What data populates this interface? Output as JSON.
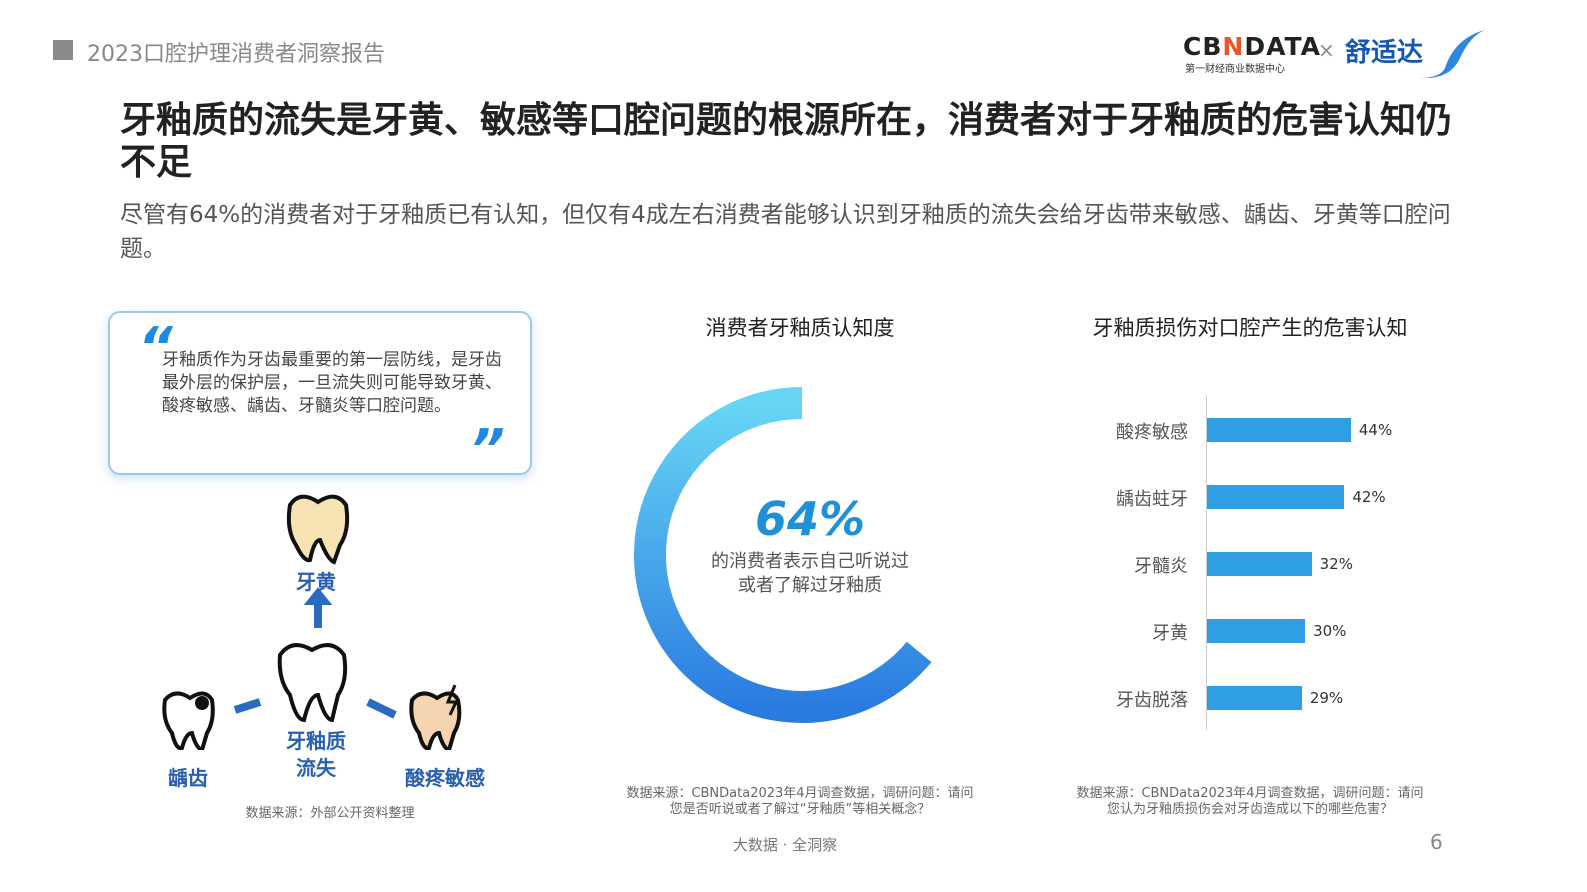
{
  "header": {
    "report_title": "2023口腔护理消费者洞察报告",
    "logo_cbn": "CBNDATA",
    "logo_cbn_sub": "第一财经商业数据中心",
    "times": "×",
    "logo_partner": "舒适达"
  },
  "title": "牙釉质的流失是牙黄、敏感等口腔问题的根源所在，消费者对于牙釉质的危害认知仍不足",
  "subtitle": "尽管有64%的消费者对于牙釉质已有认知，但仅有4成左右消费者能够认识到牙釉质的流失会给牙齿带来敏感、龋齿、牙黄等口腔问题。",
  "left": {
    "quote": "牙釉质作为牙齿最重要的第一层防线，是牙齿最外层的保护层，一旦流失则可能导致牙黄、酸疼敏感、龋齿、牙髓炎等口腔问题。",
    "quote_open": "“",
    "quote_close": "”",
    "center_label": "牙釉质流失",
    "top_label": "牙黄",
    "left_label": "龋齿",
    "right_label": "酸疼敏感",
    "source": "数据来源：外部公开资料整理"
  },
  "chart_data": [
    {
      "type": "pie",
      "title": "消费者牙釉质认知度",
      "values": [
        64
      ],
      "center_value": "64%",
      "center_text_1": "的消费者表示自己听说过",
      "center_text_2": "或者了解过牙釉质",
      "colors": [
        "#67d6f5",
        "#2a7be0"
      ],
      "source_1": "数据来源：CBNData2023年4月调查数据，调研问题：请问",
      "source_2": "您是否听说或者了解过“牙釉质”等相关概念？"
    },
    {
      "type": "bar",
      "orientation": "horizontal",
      "title": "牙釉质损伤对口腔产生的危害认知",
      "categories": [
        "酸疼敏感",
        "龋齿蛀牙",
        "牙髓炎",
        "牙黄",
        "牙齿脱落"
      ],
      "values": [
        44,
        42,
        32,
        30,
        29
      ],
      "labels": [
        "44%",
        "42%",
        "32%",
        "30%",
        "29%"
      ],
      "color": "#2f9ee3",
      "source_1": "数据来源：CBNData2023年4月调查数据，调研问题：请问",
      "source_2": "您认为牙釉质损伤会对牙齿造成以下的哪些危害？"
    }
  ],
  "footer": {
    "slogan": "大数据 · 全洞察",
    "page": "6"
  }
}
